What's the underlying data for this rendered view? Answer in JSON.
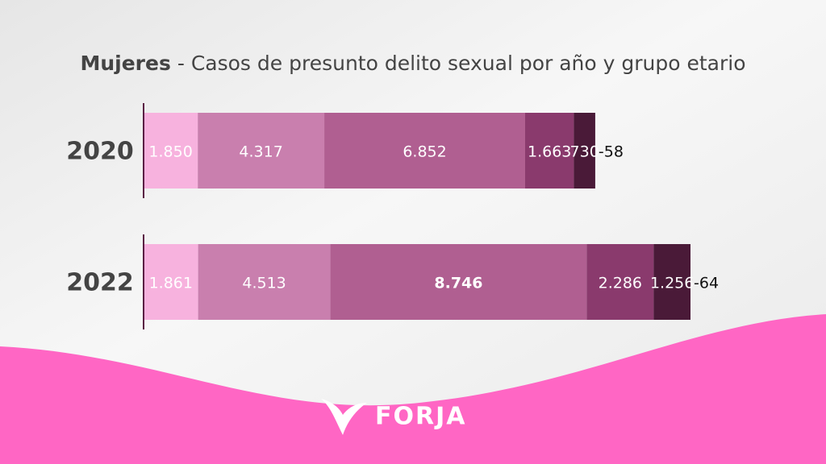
{
  "chart_data": {
    "type": "stacked-bar",
    "title_emphasis": "Mujeres",
    "title": "- Casos de presunto delito sexual por año y grupo etario",
    "categories": [
      "2020",
      "2022"
    ],
    "series": [
      {
        "color": "#f7b2de",
        "values": [
          1850,
          1861
        ],
        "value_labels": [
          "1.850",
          "1.861"
        ]
      },
      {
        "color": "#c97fae",
        "values": [
          4317,
          4513
        ],
        "value_labels": [
          "4.317",
          "4.513"
        ]
      },
      {
        "color": "#b05f91",
        "values": [
          6852,
          8746
        ],
        "value_labels": [
          "6.852",
          "8.746"
        ]
      },
      {
        "color": "#8a3a6d",
        "values": [
          1663,
          2286
        ],
        "value_labels": [
          "1.663",
          "2.286"
        ]
      },
      {
        "color": "#4a1a38",
        "values": [
          730,
          1256
        ],
        "value_labels": [
          "730",
          "1.256"
        ]
      }
    ],
    "annotations": [
      "-58",
      "-64"
    ]
  },
  "brand": "FORJA"
}
